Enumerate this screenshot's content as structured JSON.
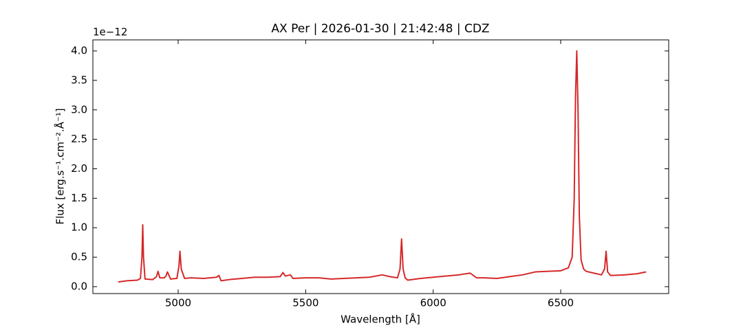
{
  "chart_data": {
    "type": "line",
    "title": "AX Per | 2026-01-30 | 21:42:48 | CDZ",
    "xlabel": "Wavelength [Å]",
    "ylabel": "Flux [erg.s⁻¹.cm⁻².Å⁻¹]",
    "offset_text": "1e−12",
    "color": "#d62728",
    "x": [
      4765,
      4800,
      4840,
      4852,
      4858,
      4861,
      4864,
      4870,
      4900,
      4915,
      4921,
      4928,
      4945,
      4952,
      4958,
      4970,
      4995,
      5003,
      5007,
      5012,
      5025,
      5050,
      5100,
      5150,
      5160,
      5168,
      5200,
      5250,
      5300,
      5350,
      5400,
      5411,
      5420,
      5440,
      5450,
      5500,
      5550,
      5600,
      5650,
      5700,
      5750,
      5800,
      5830,
      5860,
      5870,
      5876,
      5882,
      5890,
      5900,
      5950,
      6000,
      6050,
      6100,
      6145,
      6170,
      6200,
      6250,
      6300,
      6350,
      6400,
      6450,
      6500,
      6530,
      6545,
      6553,
      6558,
      6563,
      6568,
      6573,
      6580,
      6590,
      6600,
      6630,
      6660,
      6672,
      6678,
      6684,
      6695,
      6750,
      6800,
      6835
    ],
    "values": [
      0.08,
      0.1,
      0.11,
      0.14,
      0.5,
      1.05,
      0.5,
      0.13,
      0.12,
      0.17,
      0.26,
      0.15,
      0.15,
      0.18,
      0.25,
      0.13,
      0.14,
      0.35,
      0.6,
      0.3,
      0.14,
      0.15,
      0.14,
      0.16,
      0.19,
      0.1,
      0.12,
      0.14,
      0.16,
      0.16,
      0.17,
      0.24,
      0.18,
      0.2,
      0.14,
      0.15,
      0.15,
      0.13,
      0.14,
      0.15,
      0.16,
      0.2,
      0.17,
      0.15,
      0.3,
      0.81,
      0.3,
      0.15,
      0.11,
      0.14,
      0.16,
      0.18,
      0.2,
      0.23,
      0.15,
      0.15,
      0.14,
      0.17,
      0.2,
      0.25,
      0.26,
      0.27,
      0.32,
      0.5,
      1.5,
      3.2,
      4.0,
      3.0,
      1.2,
      0.45,
      0.3,
      0.26,
      0.23,
      0.2,
      0.3,
      0.6,
      0.25,
      0.19,
      0.2,
      0.22,
      0.25
    ],
    "xlim": [
      4665.5,
      6923.5
    ],
    "ylim": [
      -0.117,
      4.187
    ],
    "xticks": [
      5000,
      5500,
      6000,
      6500
    ],
    "yticks": [
      {
        "value": 0,
        "label": "0.0"
      },
      {
        "value": 0.5,
        "label": "0.5"
      },
      {
        "value": 1,
        "label": "1.0"
      },
      {
        "value": 1.5,
        "label": "1.5"
      },
      {
        "value": 2,
        "label": "2.0"
      },
      {
        "value": 2.5,
        "label": "2.5"
      },
      {
        "value": 3,
        "label": "3.0"
      },
      {
        "value": 3.5,
        "label": "3.5"
      },
      {
        "value": 4,
        "label": "4.0"
      }
    ],
    "grid": false
  }
}
